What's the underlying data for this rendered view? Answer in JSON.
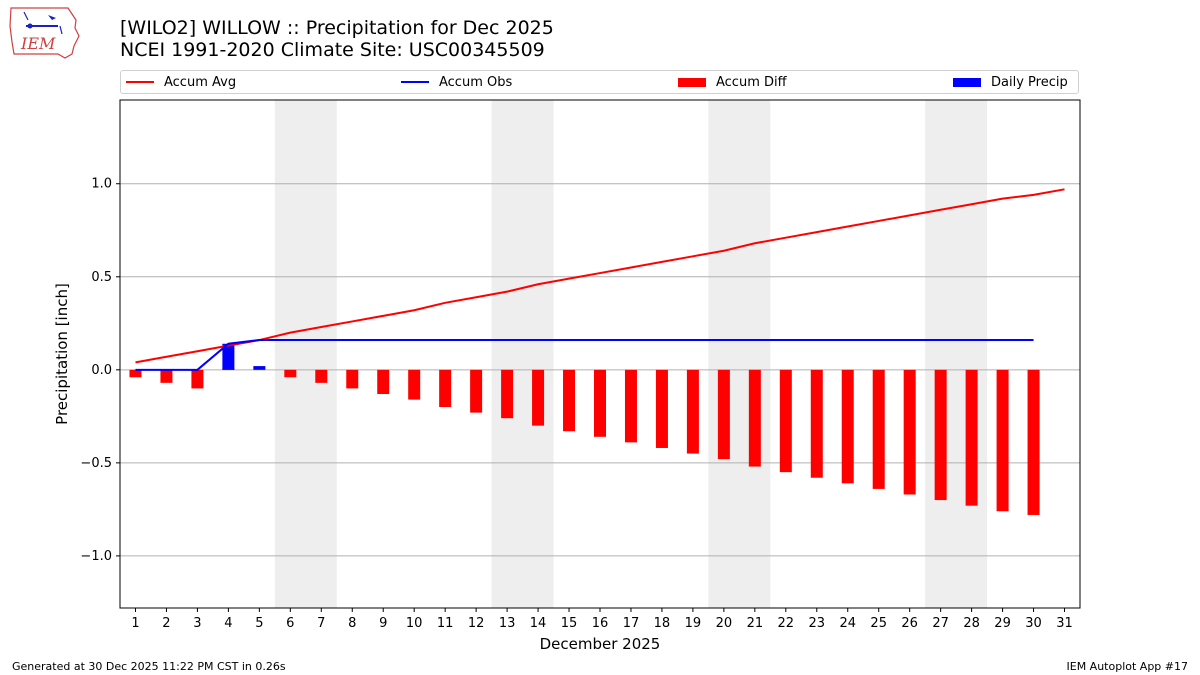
{
  "header": {
    "title_line1": "[WILO2] WILLOW :: Precipitation for Dec 2025",
    "title_line2": "NCEI 1991-2020 Climate Site: USC00345509",
    "logo_text": "IEM"
  },
  "legend": [
    {
      "label": "Accum Avg",
      "color": "#ff0000",
      "kind": "line"
    },
    {
      "label": "Accum Obs",
      "color": "#0000ff",
      "kind": "line"
    },
    {
      "label": "Accum Diff",
      "color": "#ff0000",
      "kind": "bar"
    },
    {
      "label": "Daily Precip",
      "color": "#0000ff",
      "kind": "bar"
    }
  ],
  "footer": {
    "left": "Generated at 30 Dec 2025 11:22 PM CST in 0.26s",
    "right": "IEM Autoplot App #17"
  },
  "chart_data": {
    "type": "bar",
    "xlabel": "December 2025",
    "ylabel": "Precipitation [inch]",
    "xlim": [
      0.5,
      31.5
    ],
    "ylim": [
      -1.28,
      1.45
    ],
    "yticks": [
      -1.0,
      -0.5,
      0.0,
      0.5,
      1.0
    ],
    "ytick_labels": [
      "−1.0",
      "−0.5",
      "0.0",
      "0.5",
      "1.0"
    ],
    "xticks": [
      1,
      2,
      3,
      4,
      5,
      6,
      7,
      8,
      9,
      10,
      11,
      12,
      13,
      14,
      15,
      16,
      17,
      18,
      19,
      20,
      21,
      22,
      23,
      24,
      25,
      26,
      27,
      28,
      29,
      30,
      31
    ],
    "grid": "horizontal",
    "weekend_bands": [
      [
        6,
        7
      ],
      [
        13,
        14
      ],
      [
        20,
        21
      ],
      [
        27,
        28
      ]
    ],
    "accum_avg": {
      "x": [
        1,
        2,
        3,
        4,
        5,
        6,
        7,
        8,
        9,
        10,
        11,
        12,
        13,
        14,
        15,
        16,
        17,
        18,
        19,
        20,
        21,
        22,
        23,
        24,
        25,
        26,
        27,
        28,
        29,
        30,
        31
      ],
      "values": [
        0.04,
        0.07,
        0.1,
        0.13,
        0.16,
        0.2,
        0.23,
        0.26,
        0.29,
        0.32,
        0.36,
        0.39,
        0.42,
        0.46,
        0.49,
        0.52,
        0.55,
        0.58,
        0.61,
        0.64,
        0.68,
        0.71,
        0.74,
        0.77,
        0.8,
        0.83,
        0.86,
        0.89,
        0.92,
        0.94,
        0.97
      ]
    },
    "accum_obs": {
      "x": [
        1,
        2,
        3,
        4,
        5,
        6,
        7,
        8,
        9,
        10,
        11,
        12,
        13,
        14,
        15,
        16,
        17,
        18,
        19,
        20,
        21,
        22,
        23,
        24,
        25,
        26,
        27,
        28,
        29,
        30
      ],
      "values": [
        0.0,
        0.0,
        0.0,
        0.14,
        0.16,
        0.16,
        0.16,
        0.16,
        0.16,
        0.16,
        0.16,
        0.16,
        0.16,
        0.16,
        0.16,
        0.16,
        0.16,
        0.16,
        0.16,
        0.16,
        0.16,
        0.16,
        0.16,
        0.16,
        0.16,
        0.16,
        0.16,
        0.16,
        0.16,
        0.16
      ]
    },
    "accum_diff": {
      "x": [
        1,
        2,
        3,
        4,
        5,
        6,
        7,
        8,
        9,
        10,
        11,
        12,
        13,
        14,
        15,
        16,
        17,
        18,
        19,
        20,
        21,
        22,
        23,
        24,
        25,
        26,
        27,
        28,
        29,
        30
      ],
      "values": [
        -0.04,
        -0.07,
        -0.1,
        0.01,
        0.0,
        -0.04,
        -0.07,
        -0.1,
        -0.13,
        -0.16,
        -0.2,
        -0.23,
        -0.26,
        -0.3,
        -0.33,
        -0.36,
        -0.39,
        -0.42,
        -0.45,
        -0.48,
        -0.52,
        -0.55,
        -0.58,
        -0.61,
        -0.64,
        -0.67,
        -0.7,
        -0.73,
        -0.76,
        -0.78
      ]
    },
    "daily_precip": {
      "x": [
        4,
        5
      ],
      "values": [
        0.14,
        0.02
      ]
    }
  }
}
